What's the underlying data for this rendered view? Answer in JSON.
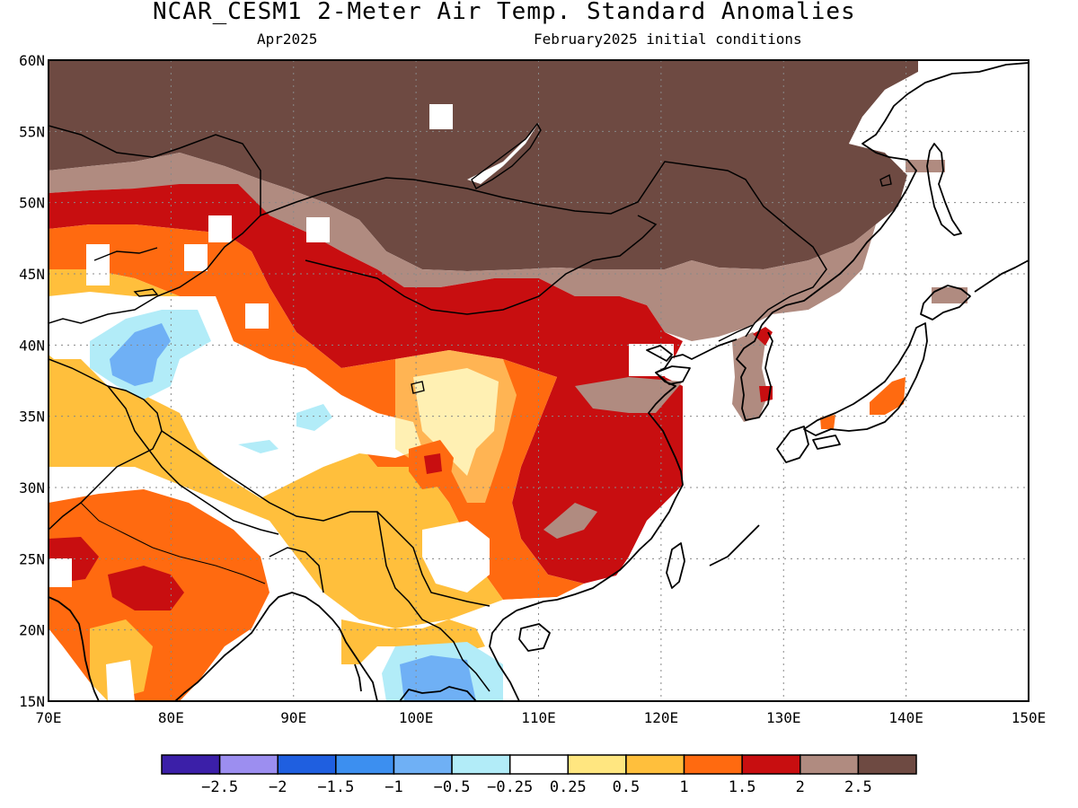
{
  "title": "NCAR_CESM1 2-Meter Air Temp. Standard Anomalies",
  "subtitle_left": "Apr2025",
  "subtitle_right": "February2025 initial conditions",
  "map": {
    "lon_range": [
      70,
      150
    ],
    "lat_range": [
      15,
      60
    ],
    "lon_ticks": [
      "70E",
      "80E",
      "90E",
      "100E",
      "110E",
      "120E",
      "130E",
      "140E",
      "150E"
    ],
    "lat_ticks": [
      "15N",
      "20N",
      "25N",
      "30N",
      "35N",
      "40N",
      "45N",
      "50N",
      "55N",
      "60N"
    ],
    "grid": "dotted"
  },
  "colorbar": {
    "colors": [
      "#3b1fa8",
      "#9c8ef0",
      "#1f5fe0",
      "#3c8ff0",
      "#6fb0f5",
      "#b2ecf8",
      "#ffffff",
      "#ffe680",
      "#ffbf3c",
      "#ff6a10",
      "#c80e10",
      "#b08b80",
      "#6e4a42"
    ],
    "labels": [
      "-2.5",
      "-2",
      "-1.5",
      "-1",
      "-0.5",
      "-0.25",
      "0.25",
      "0.5",
      "1",
      "1.5",
      "2",
      "2.5"
    ]
  },
  "colors": {
    "frame": "#000000",
    "gridline": "#888888"
  }
}
